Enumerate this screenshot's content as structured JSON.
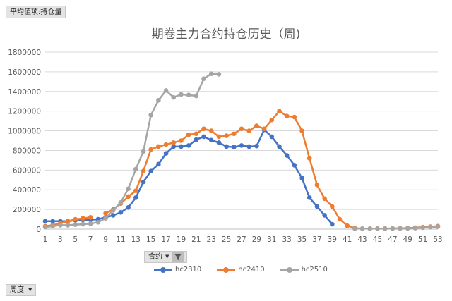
{
  "pivot": {
    "values_field": "平均值项:持仓量",
    "series_field": "合约",
    "axis_field": "周度"
  },
  "colors": {
    "hc2310": "#4472C4",
    "hc2410": "#ED7D31",
    "hc2510": "#A5A5A5"
  },
  "chart_data": {
    "type": "line",
    "title": "期卷主力合约持仓历史（周)",
    "xlabel": "",
    "ylabel": "",
    "ylim": [
      0,
      1800000
    ],
    "yticks": [
      "0",
      "200000",
      "400000",
      "600000",
      "800000",
      "1000000",
      "1200000",
      "1400000",
      "1600000",
      "1800000"
    ],
    "xlim": [
      1,
      53
    ],
    "xticks": [
      1,
      3,
      5,
      7,
      9,
      11,
      13,
      15,
      17,
      19,
      21,
      23,
      25,
      27,
      29,
      31,
      33,
      35,
      37,
      39,
      41,
      43,
      45,
      47,
      49,
      51,
      53
    ],
    "grid": true,
    "legend_position": "bottom",
    "series": [
      {
        "name": "hc2310",
        "x": [
          1,
          2,
          3,
          4,
          5,
          6,
          7,
          8,
          9,
          10,
          11,
          12,
          13,
          14,
          15,
          16,
          17,
          18,
          19,
          20,
          21,
          22,
          23,
          24,
          25,
          26,
          27,
          28,
          29,
          30,
          31,
          32,
          33,
          34,
          35,
          36,
          37,
          38,
          39
        ],
        "values": [
          80000,
          80000,
          80000,
          80000,
          90000,
          95000,
          95000,
          100000,
          120000,
          140000,
          170000,
          220000,
          320000,
          480000,
          590000,
          660000,
          770000,
          840000,
          840000,
          850000,
          910000,
          940000,
          905000,
          880000,
          840000,
          835000,
          850000,
          840000,
          845000,
          1010000,
          940000,
          840000,
          750000,
          650000,
          520000,
          320000,
          230000,
          140000,
          50000
        ]
      },
      {
        "name": "hc2410",
        "x": [
          1,
          2,
          3,
          4,
          5,
          6,
          7,
          8,
          9,
          10,
          11,
          12,
          13,
          14,
          15,
          16,
          17,
          18,
          19,
          20,
          21,
          22,
          23,
          24,
          25,
          26,
          27,
          28,
          29,
          30,
          31,
          32,
          33,
          34,
          35,
          36,
          37,
          38,
          39,
          40,
          41,
          42,
          43,
          44,
          45,
          46,
          47,
          48,
          49,
          50,
          51,
          52,
          53
        ],
        "values": [
          30000,
          40000,
          60000,
          80000,
          100000,
          110000,
          120000,
          null,
          160000,
          200000,
          260000,
          330000,
          390000,
          590000,
          810000,
          840000,
          860000,
          880000,
          900000,
          960000,
          970000,
          1020000,
          1000000,
          940000,
          950000,
          970000,
          1020000,
          1000000,
          1050000,
          1020000,
          1110000,
          1200000,
          1150000,
          1140000,
          1000000,
          720000,
          450000,
          310000,
          230000,
          100000,
          35000,
          10000,
          5000,
          5000,
          5000,
          6000,
          7000,
          8000,
          10000,
          15000,
          20000,
          25000,
          30000
        ]
      },
      {
        "name": "hc2510",
        "x": [
          1,
          2,
          3,
          4,
          5,
          6,
          7,
          8,
          9,
          10,
          11,
          12,
          13,
          14,
          15,
          16,
          17,
          18,
          19,
          20,
          21,
          22,
          23,
          24,
          25,
          26,
          27,
          28,
          29,
          30,
          31,
          32,
          33,
          34,
          35,
          36,
          37,
          38,
          39,
          40,
          41,
          42,
          43,
          44,
          45,
          46,
          47,
          48,
          49,
          50,
          51,
          52,
          53
        ],
        "values": [
          20000,
          30000,
          40000,
          40000,
          45000,
          50000,
          55000,
          70000,
          110000,
          190000,
          270000,
          410000,
          610000,
          790000,
          1160000,
          1310000,
          1410000,
          1340000,
          1370000,
          1365000,
          1355000,
          1530000,
          1580000,
          1575000,
          null,
          null,
          null,
          null,
          null,
          null,
          null,
          null,
          null,
          null,
          null,
          null,
          null,
          null,
          null,
          null,
          null,
          5000,
          5000,
          5000,
          5000,
          5000,
          6000,
          7000,
          8000,
          10000,
          15000,
          20000,
          25000
        ]
      }
    ]
  }
}
